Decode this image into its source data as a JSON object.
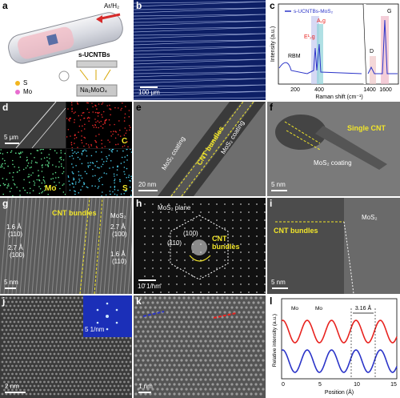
{
  "panels": {
    "a": {
      "label": "a",
      "gas": "Ar/H₂",
      "product": "s-UCNTBs",
      "precursor": "Na₂MoO₄",
      "legend_s": "S",
      "legend_mo": "Mo"
    },
    "b": {
      "label": "b",
      "scale": "100 μm"
    },
    "c": {
      "label": "c",
      "legend": "s-UCNTBs-MoS₂",
      "rbm": "RBM",
      "e2g": "E¹₂g",
      "a1g": "A₁g",
      "d": "D",
      "g": "G",
      "ylabel": "Intensity (a.u.)",
      "xlabel": "Raman shift (cm⁻¹)",
      "xticks": [
        "200",
        "400",
        "1400",
        "1600"
      ]
    },
    "d": {
      "label": "d",
      "scale": "5 μm",
      "c": "C",
      "mo": "Mo",
      "s": "S"
    },
    "e": {
      "label": "e",
      "scale": "20 nm",
      "bundles": "CNT bundles",
      "coat1": "MoS₂ coating",
      "coat2": "MoS₂ coating"
    },
    "f": {
      "label": "f",
      "scale": "5 nm",
      "single": "Single CNT",
      "coat": "MoS₂ coating"
    },
    "g": {
      "label": "g",
      "scale": "5 nm",
      "bundles": "CNT bundles",
      "mos2": "MoS₂",
      "d1": "1.6 Å",
      "d1i": "(110)",
      "d2": "2.7 Å",
      "d2i": "(100)",
      "d3": "2.7 Å",
      "d3i": "(100)",
      "d4": "1.6 Å",
      "d4i": "(110)"
    },
    "h": {
      "label": "h",
      "scale": "10 1/nm",
      "plane": "MoS₂ plane",
      "p100": "(100)",
      "p110": "(110)",
      "bundles": "CNT bundles"
    },
    "i": {
      "label": "i",
      "scale": "5 nm",
      "bundles": "CNT bundles",
      "mos2": "MoS₂"
    },
    "j": {
      "label": "j",
      "scale": "2 nm",
      "inset_scale": "5 1/nm"
    },
    "k": {
      "label": "k",
      "scale": "1 nm"
    },
    "l": {
      "label": "l",
      "distance": "3.16 Å",
      "mo1": "Mo",
      "mo2": "Mo",
      "ylabel": "Relative intensity (a.u.)",
      "xlabel": "Position (Å)",
      "xticks": [
        "0",
        "5",
        "10",
        "15"
      ]
    }
  },
  "colors": {
    "red": "#e8231f",
    "blue": "#2b34c8",
    "yellow": "#f2e629",
    "map_c": "#e02828",
    "map_mo": "#5fe08c",
    "map_s": "#47c8e6"
  }
}
